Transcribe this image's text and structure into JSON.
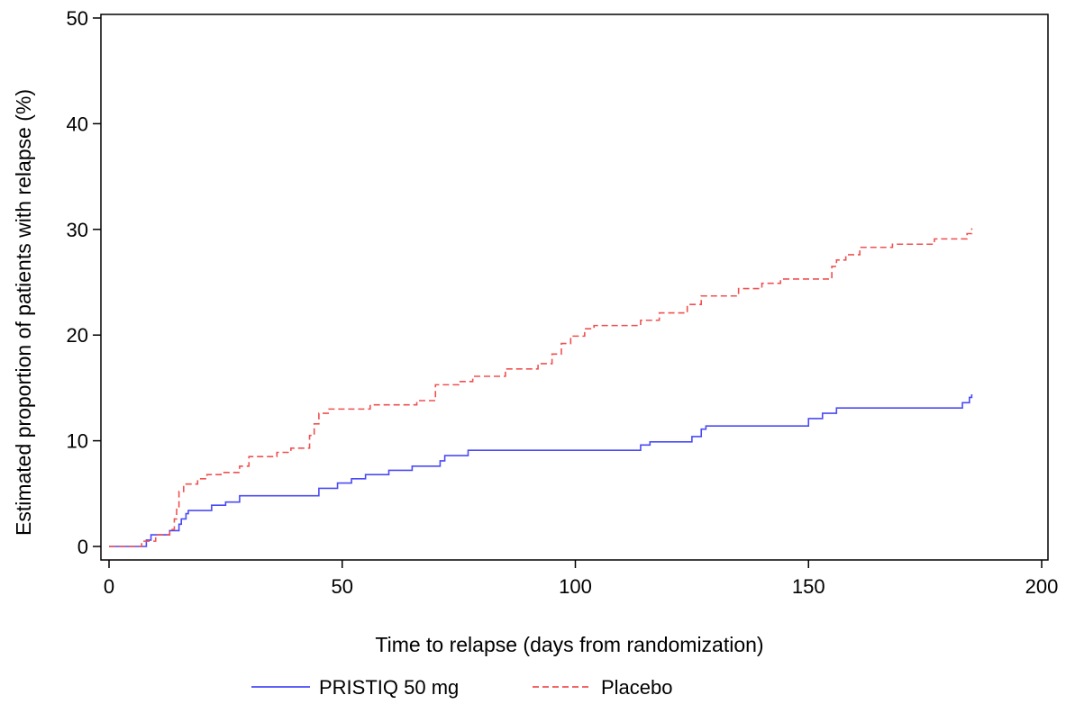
{
  "chart_data": {
    "type": "line",
    "title": "",
    "xlabel": "Time to relapse (days from randomization)",
    "ylabel": "Estimated proportion of patients with relapse (%)",
    "xlim": [
      0,
      200
    ],
    "ylim": [
      0,
      50
    ],
    "x_ticks": [
      0,
      50,
      100,
      150,
      200
    ],
    "y_ticks": [
      0,
      10,
      20,
      30,
      40,
      50
    ],
    "x_tick_labels": [
      "0",
      "50",
      "100",
      "150",
      "200"
    ],
    "y_tick_labels": [
      "0",
      "10",
      "20",
      "30",
      "40",
      "50"
    ],
    "grid": false,
    "legend_position": "bottom",
    "step": true,
    "series": [
      {
        "name": "PRISTIQ 50 mg",
        "color": "#4a4af5",
        "dash": "solid",
        "points": [
          [
            0,
            0
          ],
          [
            8,
            0
          ],
          [
            8,
            0.6
          ],
          [
            9,
            0.6
          ],
          [
            9,
            1.1
          ],
          [
            13,
            1.1
          ],
          [
            13,
            1.5
          ],
          [
            15,
            1.5
          ],
          [
            15,
            2.1
          ],
          [
            15.5,
            2.1
          ],
          [
            15.5,
            2.6
          ],
          [
            16.5,
            2.6
          ],
          [
            16.5,
            3.1
          ],
          [
            17,
            3.1
          ],
          [
            17,
            3.4
          ],
          [
            22,
            3.4
          ],
          [
            22,
            3.9
          ],
          [
            25,
            3.9
          ],
          [
            25,
            4.2
          ],
          [
            28,
            4.2
          ],
          [
            28,
            4.8
          ],
          [
            45,
            4.8
          ],
          [
            45,
            5.5
          ],
          [
            49,
            5.5
          ],
          [
            49,
            6.0
          ],
          [
            52,
            6.0
          ],
          [
            52,
            6.4
          ],
          [
            55,
            6.4
          ],
          [
            55,
            6.8
          ],
          [
            60,
            6.8
          ],
          [
            60,
            7.2
          ],
          [
            65,
            7.2
          ],
          [
            65,
            7.6
          ],
          [
            71,
            7.6
          ],
          [
            71,
            8.1
          ],
          [
            72,
            8.1
          ],
          [
            72,
            8.6
          ],
          [
            77,
            8.6
          ],
          [
            77,
            9.1
          ],
          [
            114,
            9.1
          ],
          [
            114,
            9.6
          ],
          [
            116,
            9.6
          ],
          [
            116,
            9.9
          ],
          [
            125,
            9.9
          ],
          [
            125,
            10.4
          ],
          [
            127,
            10.4
          ],
          [
            127,
            11.1
          ],
          [
            128,
            11.1
          ],
          [
            128,
            11.4
          ],
          [
            150,
            11.4
          ],
          [
            150,
            12.1
          ],
          [
            153,
            12.1
          ],
          [
            153,
            12.6
          ],
          [
            156,
            12.6
          ],
          [
            156,
            13.1
          ],
          [
            183,
            13.1
          ],
          [
            183,
            13.6
          ],
          [
            184.5,
            13.6
          ],
          [
            184.5,
            14.1
          ],
          [
            185,
            14.1
          ],
          [
            185,
            14.4
          ]
        ]
      },
      {
        "name": "Placebo",
        "color": "#f05050",
        "dash": "dashed",
        "points": [
          [
            0,
            0
          ],
          [
            7,
            0
          ],
          [
            7,
            0.5
          ],
          [
            10,
            0.5
          ],
          [
            10,
            1.1
          ],
          [
            13,
            1.1
          ],
          [
            13,
            1.6
          ],
          [
            14,
            1.6
          ],
          [
            14,
            2.6
          ],
          [
            14.5,
            2.6
          ],
          [
            14.5,
            3.6
          ],
          [
            15,
            3.6
          ],
          [
            15,
            5.2
          ],
          [
            16,
            5.2
          ],
          [
            16,
            5.9
          ],
          [
            19,
            5.9
          ],
          [
            19,
            6.4
          ],
          [
            21,
            6.4
          ],
          [
            21,
            6.8
          ],
          [
            24,
            6.8
          ],
          [
            24,
            7.0
          ],
          [
            28,
            7.0
          ],
          [
            28,
            7.6
          ],
          [
            30,
            7.6
          ],
          [
            30,
            8.5
          ],
          [
            36,
            8.5
          ],
          [
            36,
            8.9
          ],
          [
            39,
            8.9
          ],
          [
            39,
            9.3
          ],
          [
            43,
            9.3
          ],
          [
            43,
            10.5
          ],
          [
            44,
            10.5
          ],
          [
            44,
            11.6
          ],
          [
            45,
            11.6
          ],
          [
            45,
            12.6
          ],
          [
            47,
            12.6
          ],
          [
            47,
            13.0
          ],
          [
            56,
            13.0
          ],
          [
            56,
            13.4
          ],
          [
            66,
            13.4
          ],
          [
            66,
            13.8
          ],
          [
            70,
            13.8
          ],
          [
            70,
            15.3
          ],
          [
            75,
            15.3
          ],
          [
            75,
            15.6
          ],
          [
            78,
            15.6
          ],
          [
            78,
            16.1
          ],
          [
            85,
            16.1
          ],
          [
            85,
            16.8
          ],
          [
            92,
            16.8
          ],
          [
            92,
            17.3
          ],
          [
            95,
            17.3
          ],
          [
            95,
            18.2
          ],
          [
            97,
            18.2
          ],
          [
            97,
            19.2
          ],
          [
            99,
            19.2
          ],
          [
            99,
            19.9
          ],
          [
            102,
            19.9
          ],
          [
            102,
            20.6
          ],
          [
            104,
            20.6
          ],
          [
            104,
            20.9
          ],
          [
            114,
            20.9
          ],
          [
            114,
            21.4
          ],
          [
            118,
            21.4
          ],
          [
            118,
            22.1
          ],
          [
            124,
            22.1
          ],
          [
            124,
            22.9
          ],
          [
            127,
            22.9
          ],
          [
            127,
            23.7
          ],
          [
            135,
            23.7
          ],
          [
            135,
            24.4
          ],
          [
            140,
            24.4
          ],
          [
            140,
            24.9
          ],
          [
            144,
            24.9
          ],
          [
            144,
            25.3
          ],
          [
            155,
            25.3
          ],
          [
            155,
            26.5
          ],
          [
            156,
            26.5
          ],
          [
            156,
            27.1
          ],
          [
            158,
            27.1
          ],
          [
            158,
            27.6
          ],
          [
            161,
            27.6
          ],
          [
            161,
            28.3
          ],
          [
            168,
            28.3
          ],
          [
            168,
            28.6
          ],
          [
            177,
            28.6
          ],
          [
            177,
            29.1
          ],
          [
            184,
            29.1
          ],
          [
            184,
            29.6
          ],
          [
            185,
            29.6
          ],
          [
            185,
            30.1
          ]
        ]
      }
    ]
  }
}
